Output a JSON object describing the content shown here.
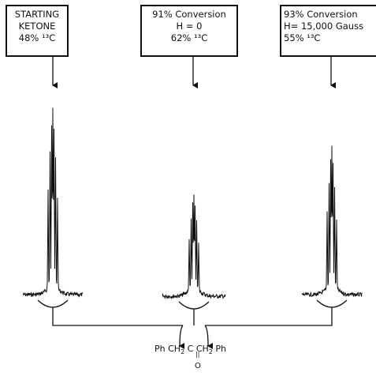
{
  "boxes": [
    {
      "lines": [
        "STARTING",
        "KETONE",
        "48% ¹³C"
      ]
    },
    {
      "lines": [
        "91% Conversion",
        "H = 0",
        "62% ¹³C"
      ]
    },
    {
      "lines": [
        "93% Conversion",
        "H= 15,000 Gauss",
        "55% ¹³C"
      ]
    }
  ],
  "product": {
    "ph1": "Ph",
    "ch2_a": "CH",
    "sub_a": "2",
    "c": "C",
    "ch2_b": "CH",
    "sub_b": "2",
    "ph2": "Ph",
    "oxygen": "O"
  },
  "spectra": [
    {
      "name": "starting-ketone",
      "peak_height": 1.0
    },
    {
      "name": "zero-field",
      "peak_height": 0.52
    },
    {
      "name": "high-field",
      "peak_height": 0.78
    }
  ]
}
